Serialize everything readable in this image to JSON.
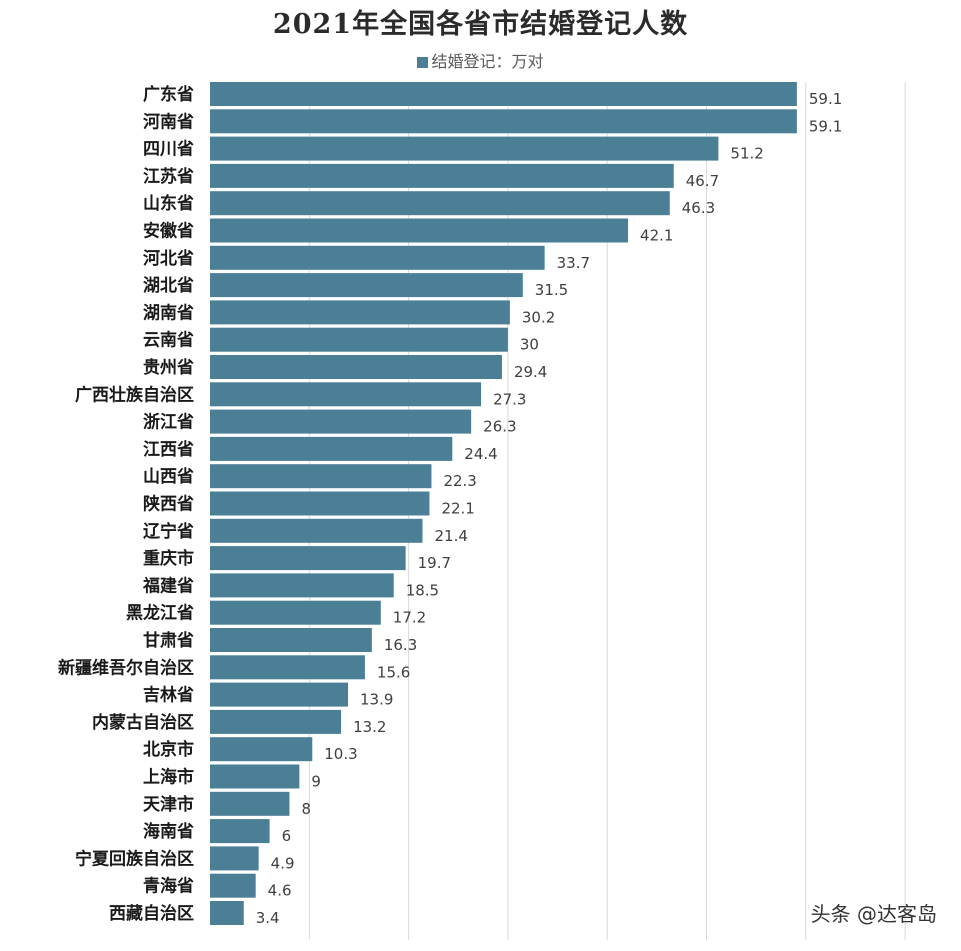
{
  "watermark": "头条 @达客岛",
  "chart_data": {
    "type": "bar",
    "orientation": "horizontal",
    "title": "2021年全国各省市结婚登记人数",
    "legend": "结婚登记：万对",
    "legend_position": "top",
    "bar_color": "#4a7f96",
    "grid": true,
    "xlim": [
      0,
      70
    ],
    "categories": [
      "广东省",
      "河南省",
      "四川省",
      "江苏省",
      "山东省",
      "安徽省",
      "河北省",
      "湖北省",
      "湖南省",
      "云南省",
      "贵州省",
      "广西壮族自治区",
      "浙江省",
      "江西省",
      "山西省",
      "陕西省",
      "辽宁省",
      "重庆市",
      "福建省",
      "黑龙江省",
      "甘肃省",
      "新疆维吾尔自治区",
      "吉林省",
      "内蒙古自治区",
      "北京市",
      "上海市",
      "天津市",
      "海南省",
      "宁夏回族自治区",
      "青海省",
      "西藏自治区"
    ],
    "series": [
      {
        "values": [
          59.1,
          59.1,
          51.2,
          46.7,
          46.3,
          42.1,
          33.7,
          31.5,
          30.2,
          30,
          29.4,
          27.3,
          26.3,
          24.4,
          22.3,
          22.1,
          21.4,
          19.7,
          18.5,
          17.2,
          16.3,
          15.6,
          13.9,
          13.2,
          10.3,
          9,
          8,
          6,
          4.9,
          4.6,
          3.4
        ]
      }
    ]
  }
}
